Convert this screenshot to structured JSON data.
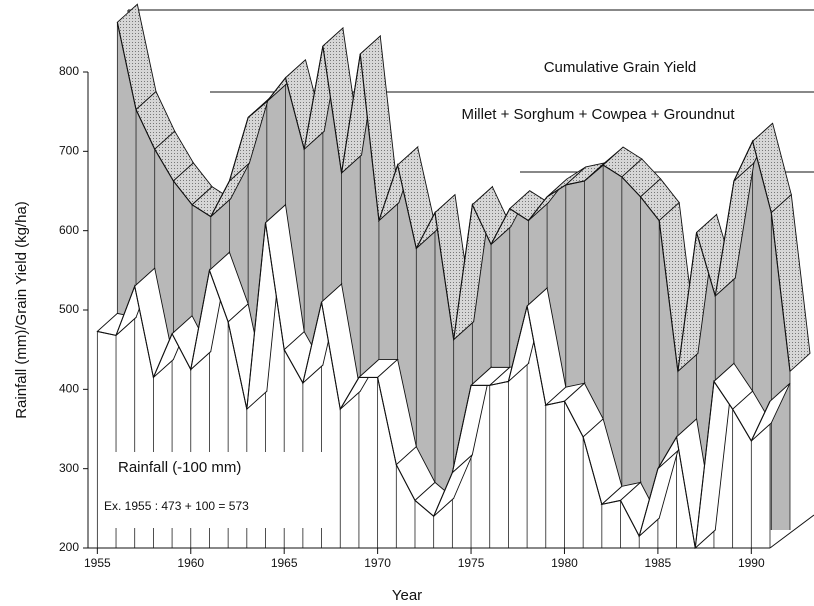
{
  "chart_data": {
    "type": "ribbon",
    "x_label": "Year",
    "y_label": "Rainfall (mm)/Grain Yield (kg/ha)",
    "subtitle": "Millet + Sorghum + Cowpea + Groundnut",
    "annotation": "Ex. 1955 : 473 + 100 = 573",
    "x": [
      1955,
      1956,
      1957,
      1958,
      1959,
      1960,
      1961,
      1962,
      1963,
      1964,
      1965,
      1966,
      1967,
      1968,
      1969,
      1970,
      1971,
      1972,
      1973,
      1974,
      1975,
      1976,
      1977,
      1978,
      1979,
      1980,
      1981,
      1982,
      1983,
      1984,
      1985,
      1986,
      1987,
      1988,
      1989,
      1990,
      1991
    ],
    "series": [
      {
        "name": "Rainfall (-100 mm)",
        "color": "#ffffff",
        "values": [
          473,
          468,
          530,
          415,
          470,
          425,
          550,
          485,
          375,
          610,
          450,
          408,
          510,
          375,
          415,
          415,
          305,
          260,
          240,
          295,
          405,
          405,
          410,
          505,
          380,
          385,
          340,
          255,
          260,
          215,
          300,
          340,
          200,
          410,
          375,
          335,
          385
        ]
      },
      {
        "name": "Cumulative Grain Yield",
        "color": "#b8b8b8",
        "values": [
          840,
          730,
          680,
          640,
          610,
          595,
          640,
          720,
          740,
          770,
          680,
          810,
          650,
          800,
          590,
          660,
          555,
          600,
          440,
          610,
          560,
          605,
          590,
          620,
          635,
          640,
          660,
          645,
          620,
          590,
          400,
          575,
          495,
          640,
          690,
          600,
          400
        ]
      }
    ],
    "xlim": [
      1954.5,
      1991
    ],
    "xticks": [
      1955,
      1960,
      1965,
      1970,
      1975,
      1980,
      1985,
      1990
    ],
    "ylim": [
      200,
      800
    ],
    "yticks": [
      200,
      300,
      400,
      500,
      600,
      700,
      800
    ]
  }
}
